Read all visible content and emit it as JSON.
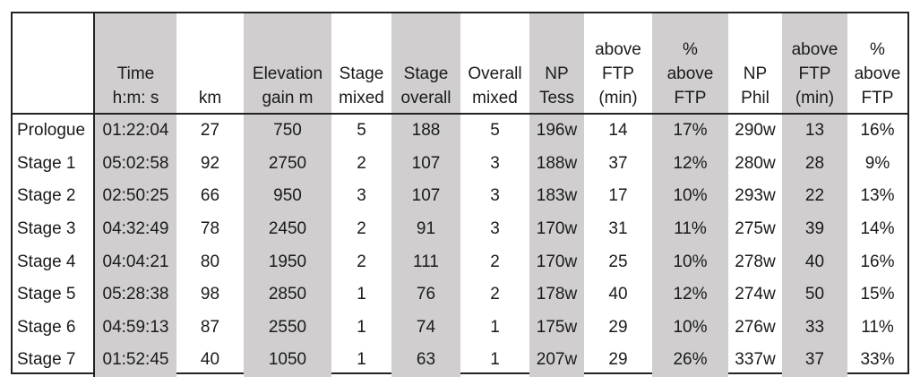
{
  "table": {
    "headers": [
      "",
      "Time\nh:m: s",
      "km",
      "Elevation\ngain m",
      "Stage\nmixed",
      "Stage\noverall",
      "Overall\nmixed",
      "NP\nTess",
      "above\nFTP\n(min)",
      "%\nabove\nFTP",
      "NP\nPhil",
      "above\nFTP\n(min)",
      "%\nabove\nFTP"
    ],
    "shaded_columns": [
      1,
      3,
      5,
      7,
      9,
      11
    ],
    "shade_color": "#d0cece",
    "rows": [
      [
        "Prologue",
        "01:22:04",
        "27",
        "750",
        "5",
        "188",
        "5",
        "196w",
        "14",
        "17%",
        "290w",
        "13",
        "16%"
      ],
      [
        "Stage 1",
        "05:02:58",
        "92",
        "2750",
        "2",
        "107",
        "3",
        "188w",
        "37",
        "12%",
        "280w",
        "28",
        "9%"
      ],
      [
        "Stage 2",
        "02:50:25",
        "66",
        "950",
        "3",
        "107",
        "3",
        "183w",
        "17",
        "10%",
        "293w",
        "22",
        "13%"
      ],
      [
        "Stage 3",
        "04:32:49",
        "78",
        "2450",
        "2",
        "91",
        "3",
        "170w",
        "31",
        "11%",
        "275w",
        "39",
        "14%"
      ],
      [
        "Stage 4",
        "04:04:21",
        "80",
        "1950",
        "2",
        "111",
        "2",
        "170w",
        "25",
        "10%",
        "278w",
        "40",
        "16%"
      ],
      [
        "Stage 5",
        "05:28:38",
        "98",
        "2850",
        "1",
        "76",
        "2",
        "178w",
        "40",
        "12%",
        "274w",
        "50",
        "15%"
      ],
      [
        "Stage 6",
        "04:59:13",
        "87",
        "2550",
        "1",
        "74",
        "1",
        "175w",
        "29",
        "10%",
        "276w",
        "33",
        "11%"
      ],
      [
        "Stage 7",
        "01:52:45",
        "40",
        "1050",
        "1",
        "63",
        "1",
        "207w",
        "29",
        "26%",
        "337w",
        "37",
        "33%"
      ]
    ]
  }
}
